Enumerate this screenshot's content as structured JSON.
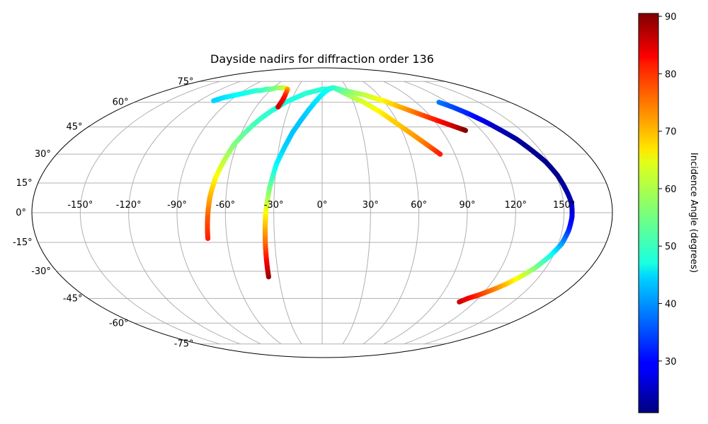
{
  "chart_data": {
    "type": "scatter",
    "projection": "mollweide",
    "title": "Dayside nadirs for diffraction order 136",
    "x_tick_labels": [
      "-150°",
      "-120°",
      "-90°",
      "-60°",
      "-30°",
      "0°",
      "30°",
      "60°",
      "90°",
      "120°",
      "150°"
    ],
    "x_ticks": [
      -150,
      -120,
      -90,
      -60,
      -30,
      0,
      30,
      60,
      90,
      120,
      150
    ],
    "y_tick_labels": [
      "-75°",
      "-60°",
      "-45°",
      "-30°",
      "-15°",
      "0°",
      "15°",
      "30°",
      "45°",
      "60°",
      "75°"
    ],
    "y_ticks": [
      -75,
      -60,
      -45,
      -30,
      -15,
      0,
      15,
      30,
      45,
      60,
      75
    ],
    "grid": true,
    "colorbar": {
      "label": "Incidence Angle (degrees)",
      "colormap": "jet",
      "min": 21,
      "max": 90.5,
      "ticks": [
        30,
        40,
        50,
        60,
        70,
        80,
        90
      ]
    },
    "series": [
      {
        "longitude": [
          -72,
          -71,
          -70,
          -68,
          -65,
          -62,
          -58,
          -54,
          -50,
          -45,
          -40,
          -35,
          -30,
          -24,
          -18,
          -12,
          -6,
          0,
          6,
          12
        ],
        "latitude": [
          -13,
          -2,
          8,
          18,
          27,
          35,
          41,
          46,
          50,
          54,
          57,
          60,
          62,
          64,
          66,
          67,
          68,
          69,
          69,
          70
        ],
        "incidence": [
          80,
          76,
          70,
          65,
          60,
          56,
          54,
          52,
          51,
          50,
          49,
          49,
          49,
          49,
          50,
          50,
          50,
          50,
          50,
          50
        ]
      },
      {
        "longitude": [
          -37,
          -36,
          -35,
          -33,
          -30,
          -26,
          -22,
          -17,
          -12,
          -7,
          -2,
          3,
          8,
          14
        ],
        "latitude": [
          -33,
          -15,
          0,
          13,
          25,
          34,
          42,
          49,
          55,
          60,
          64,
          67,
          69,
          70
        ],
        "incidence": [
          89,
          75,
          65,
          55,
          47,
          44,
          43,
          43,
          44,
          45,
          46,
          47,
          48,
          50
        ],
        "trail_right": true
      },
      {
        "longitude": [
          15,
          20,
          25,
          30,
          35,
          40,
          45,
          50,
          55,
          60,
          65,
          70,
          75,
          80
        ],
        "latitude": [
          70,
          68,
          66,
          64,
          62,
          60,
          57,
          54,
          50,
          46,
          42,
          38,
          34,
          30
        ],
        "incidence": [
          50,
          53,
          56,
          58,
          60,
          62,
          63,
          65,
          67,
          68,
          70,
          72,
          75,
          80
        ]
      },
      {
        "longitude": [
          14,
          20,
          26,
          32,
          38,
          45,
          52,
          60,
          68,
          76,
          84,
          92,
          100,
          108
        ],
        "latitude": [
          70,
          69,
          68,
          67,
          66,
          65,
          63,
          61,
          58,
          55,
          52,
          49,
          46,
          43
        ],
        "incidence": [
          50,
          52,
          54,
          56,
          58,
          60,
          62,
          65,
          68,
          72,
          76,
          80,
          84,
          90
        ]
      },
      {
        "longitude": [
          -106,
          -101,
          -96,
          -91,
          -86,
          -81,
          -76,
          -71,
          -66,
          -61,
          -56,
          -51,
          -46,
          -41,
          -40,
          -39,
          -39,
          -40
        ],
        "latitude": [
          61,
          63,
          64,
          65,
          66,
          67,
          68,
          68,
          69,
          69,
          70,
          70,
          70,
          69,
          67,
          64,
          61,
          57
        ],
        "incidence": [
          44,
          45,
          46,
          47,
          48,
          49,
          50,
          51,
          52,
          54,
          56,
          58,
          60,
          70,
          75,
          80,
          82,
          85
        ]
      },
      {
        "longitude": [
          112,
          118,
          124,
          130,
          135,
          140,
          144,
          148,
          151,
          153,
          155,
          155,
          154,
          152,
          148,
          143,
          137,
          131,
          125,
          118,
          112,
          108
        ],
        "latitude": [
          60,
          57,
          53,
          48,
          43,
          38,
          32,
          26,
          19,
          12,
          5,
          -2,
          -9,
          -16,
          -22,
          -28,
          -33,
          -37,
          -40,
          -43,
          -45,
          -47
        ],
        "incidence": [
          38,
          35,
          32,
          28,
          25,
          23,
          22,
          22,
          22,
          23,
          25,
          28,
          32,
          40,
          48,
          55,
          62,
          68,
          73,
          78,
          82,
          85
        ]
      }
    ]
  }
}
